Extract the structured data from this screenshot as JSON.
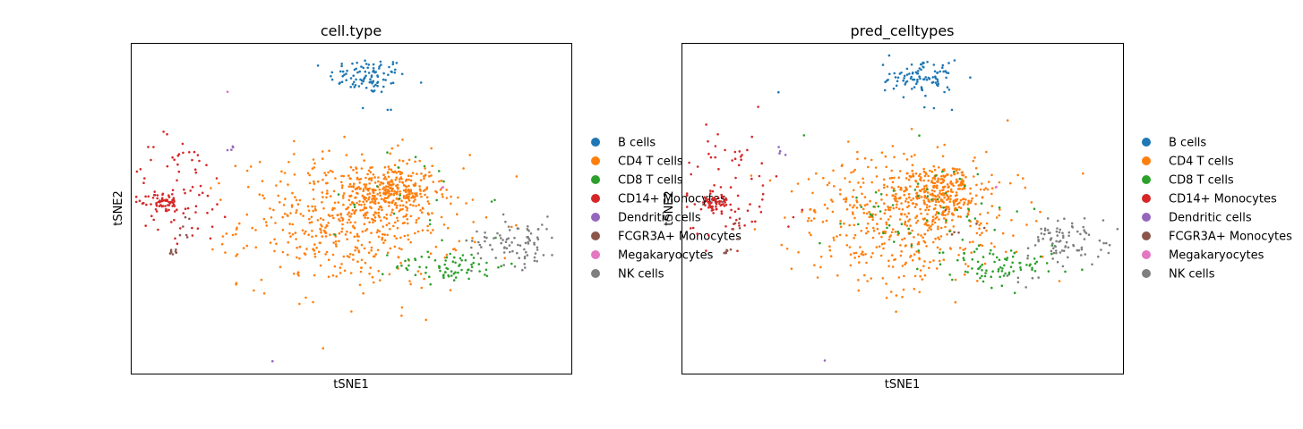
{
  "chart_data": [
    {
      "type": "scatter",
      "title": "cell.type",
      "xlabel": "tSNE1",
      "ylabel": "tSNE2",
      "legend_position": "right",
      "grid": false,
      "ticks_visible": false,
      "categories": [
        "B cells",
        "CD4 T cells",
        "CD8 T cells",
        "CD14+ Monocytes",
        "Dendritic cells",
        "FCGR3A+ Monocytes",
        "Megakaryocytes",
        "NK cells"
      ],
      "colors": [
        "#1f77b4",
        "#ff7f0e",
        "#2ca02c",
        "#d62728",
        "#9467bd",
        "#8c564b",
        "#e377c2",
        "#7f7f7f"
      ],
      "xlim": [
        -40,
        40
      ],
      "ylim": [
        -40,
        40
      ],
      "clusters": [
        {
          "category": "B cells",
          "n": 95,
          "cx": 3,
          "cy": 32,
          "sx": 3.5,
          "sy": 2.2
        },
        {
          "category": "B cells",
          "n": 3,
          "cx": 7,
          "cy": 24,
          "sx": 1.2,
          "sy": 0.5
        },
        {
          "category": "CD4 T cells",
          "n": 260,
          "cx": 7,
          "cy": 4,
          "sx": 4,
          "sy": 3.2
        },
        {
          "category": "CD4 T cells",
          "n": 520,
          "cx": 0,
          "cy": -3,
          "sx": 10,
          "sy": 8
        },
        {
          "category": "CD8 T cells",
          "n": 75,
          "cx": 18,
          "cy": -14,
          "sx": 5,
          "sy": 2
        },
        {
          "category": "CD8 T cells",
          "n": 20,
          "cx": 10,
          "cy": 3,
          "sx": 7,
          "sy": 6
        },
        {
          "category": "CD14+ Monocytes",
          "n": 55,
          "cx": -34,
          "cy": 1.5,
          "sx": 1.4,
          "sy": 1.2
        },
        {
          "category": "CD14+ Monocytes",
          "n": 70,
          "cx": -31,
          "cy": 4,
          "sx": 5,
          "sy": 7
        },
        {
          "category": "Dendritic cells",
          "n": 4,
          "cx": -21.5,
          "cy": 14,
          "sx": 0.6,
          "sy": 0.6
        },
        {
          "category": "Dendritic cells",
          "n": 1,
          "cx": -14,
          "cy": -37,
          "sx": 0.1,
          "sy": 0.1
        },
        {
          "category": "FCGR3A+ Monocytes",
          "n": 8,
          "cx": -32,
          "cy": -10.5,
          "sx": 0.6,
          "sy": 0.3
        },
        {
          "category": "FCGR3A+ Monocytes",
          "n": 6,
          "cx": -30,
          "cy": -5,
          "sx": 0.7,
          "sy": 2.2
        },
        {
          "category": "Megakaryocytes",
          "n": 2,
          "cx": 16.5,
          "cy": 5,
          "sx": 0.4,
          "sy": 0.1
        },
        {
          "category": "Megakaryocytes",
          "n": 1,
          "cx": -22.5,
          "cy": 28,
          "sx": 0.1,
          "sy": 0.1
        },
        {
          "category": "NK cells",
          "n": 85,
          "cx": 30,
          "cy": -8,
          "sx": 4,
          "sy": 3
        }
      ]
    },
    {
      "type": "scatter",
      "title": "pred_celltypes",
      "xlabel": "tSNE1",
      "ylabel": "tSNE2",
      "legend_position": "right",
      "grid": false,
      "ticks_visible": false,
      "categories": [
        "B cells",
        "CD4 T cells",
        "CD8 T cells",
        "CD14+ Monocytes",
        "Dendritic cells",
        "FCGR3A+ Monocytes",
        "Megakaryocytes",
        "NK cells"
      ],
      "colors": [
        "#1f77b4",
        "#ff7f0e",
        "#2ca02c",
        "#d62728",
        "#9467bd",
        "#8c564b",
        "#e377c2",
        "#7f7f7f"
      ],
      "xlim": [
        -40,
        40
      ],
      "ylim": [
        -40,
        40
      ],
      "clusters": [
        {
          "category": "B cells",
          "n": 95,
          "cx": 3,
          "cy": 32,
          "sx": 3.5,
          "sy": 2.2
        },
        {
          "category": "B cells",
          "n": 3,
          "cx": 5,
          "cy": 24,
          "sx": 3,
          "sy": 0.5
        },
        {
          "category": "B cells",
          "n": 1,
          "cx": -22.5,
          "cy": 28,
          "sx": 0.1,
          "sy": 0.1
        },
        {
          "category": "CD4 T cells",
          "n": 260,
          "cx": 7,
          "cy": 4,
          "sx": 4,
          "sy": 3.2
        },
        {
          "category": "CD4 T cells",
          "n": 470,
          "cx": 0,
          "cy": -3,
          "sx": 10,
          "sy": 8
        },
        {
          "category": "CD8 T cells",
          "n": 80,
          "cx": 18,
          "cy": -14,
          "sx": 5,
          "sy": 2
        },
        {
          "category": "CD8 T cells",
          "n": 60,
          "cx": 4,
          "cy": -1,
          "sx": 8,
          "sy": 7
        },
        {
          "category": "CD14+ Monocytes",
          "n": 55,
          "cx": -34,
          "cy": 1.5,
          "sx": 1.4,
          "sy": 1.2
        },
        {
          "category": "CD14+ Monocytes",
          "n": 70,
          "cx": -31,
          "cy": 4,
          "sx": 5,
          "sy": 7
        },
        {
          "category": "Dendritic cells",
          "n": 4,
          "cx": -21.5,
          "cy": 14,
          "sx": 0.6,
          "sy": 0.6
        },
        {
          "category": "Dendritic cells",
          "n": 1,
          "cx": -14,
          "cy": -37,
          "sx": 0.1,
          "sy": 0.1
        },
        {
          "category": "FCGR3A+ Monocytes",
          "n": 8,
          "cx": -32,
          "cy": -10.5,
          "sx": 0.6,
          "sy": 0.3
        },
        {
          "category": "FCGR3A+ Monocytes",
          "n": 6,
          "cx": -30,
          "cy": -5,
          "sx": 0.7,
          "sy": 2.2
        },
        {
          "category": "FCGR3A+ Monocytes",
          "n": 6,
          "cx": 12,
          "cy": -4,
          "sx": 2,
          "sy": 2
        },
        {
          "category": "Megakaryocytes",
          "n": 2,
          "cx": 16.5,
          "cy": 5,
          "sx": 0.4,
          "sy": 0.1
        },
        {
          "category": "NK cells",
          "n": 85,
          "cx": 30,
          "cy": -8,
          "sx": 4,
          "sy": 3
        },
        {
          "category": "NK cells",
          "n": 6,
          "cx": 22,
          "cy": -17,
          "sx": 1.5,
          "sy": 1
        }
      ]
    }
  ]
}
